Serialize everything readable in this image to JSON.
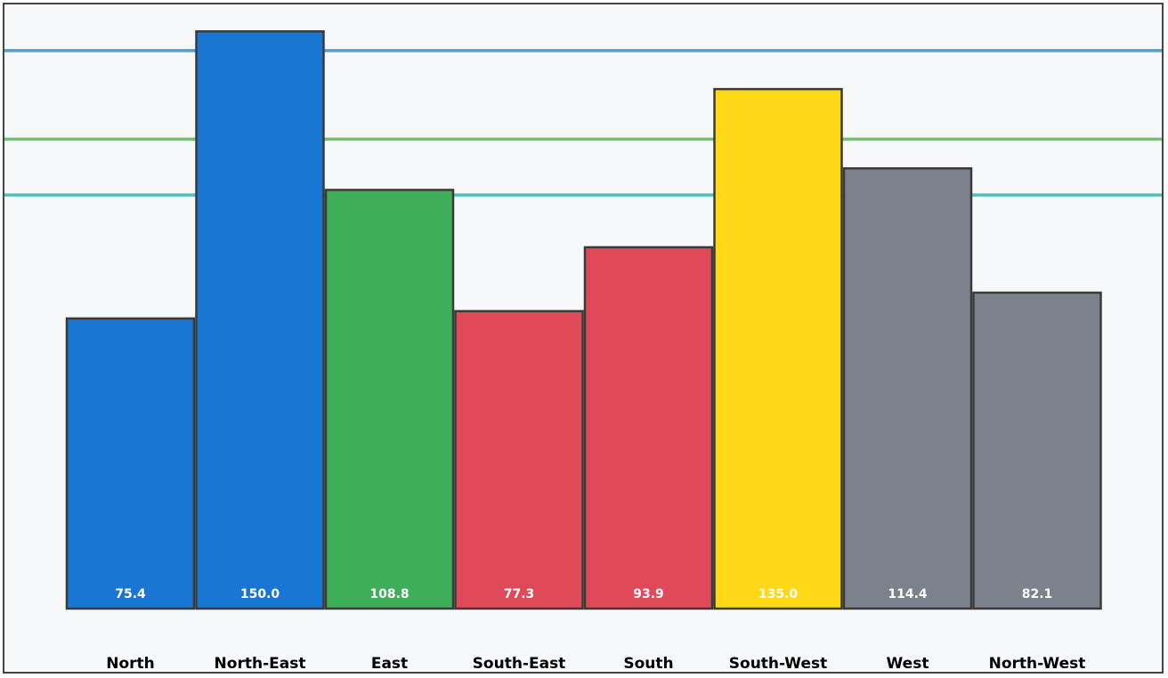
{
  "chart_data": {
    "type": "bar",
    "categories": [
      "North",
      "North-East",
      "East",
      "South-East",
      "South",
      "South-West",
      "West",
      "North-West"
    ],
    "values": [
      75.4,
      150.0,
      108.8,
      77.3,
      93.9,
      135.0,
      114.4,
      82.1
    ],
    "value_labels": [
      "75.4",
      "150.0",
      "108.8",
      "77.3",
      "93.9",
      "135.0",
      "114.4",
      "82.1"
    ],
    "bar_colors": [
      "#1976d2",
      "#1976d2",
      "#3fae58",
      "#e04a58",
      "#e04a58",
      "#ffd818",
      "#7b828b",
      "#7b828b"
    ],
    "value_label_colors": [
      "#ffffff",
      "#ffffff",
      "#ffffff",
      "#ffffff",
      "#ffffff",
      "#ffffff",
      "#ffffff",
      "#ffffff"
    ],
    "reference_lines": [
      {
        "value": 145.0,
        "color": "#5b9bd5"
      },
      {
        "value": 122.0,
        "color": "#6cc46c"
      },
      {
        "value": 107.5,
        "color": "#4fbfbf"
      }
    ],
    "ylim": [
      0,
      157
    ],
    "grid": false,
    "legend": "none",
    "title": "",
    "xlabel": "",
    "ylabel": ""
  }
}
